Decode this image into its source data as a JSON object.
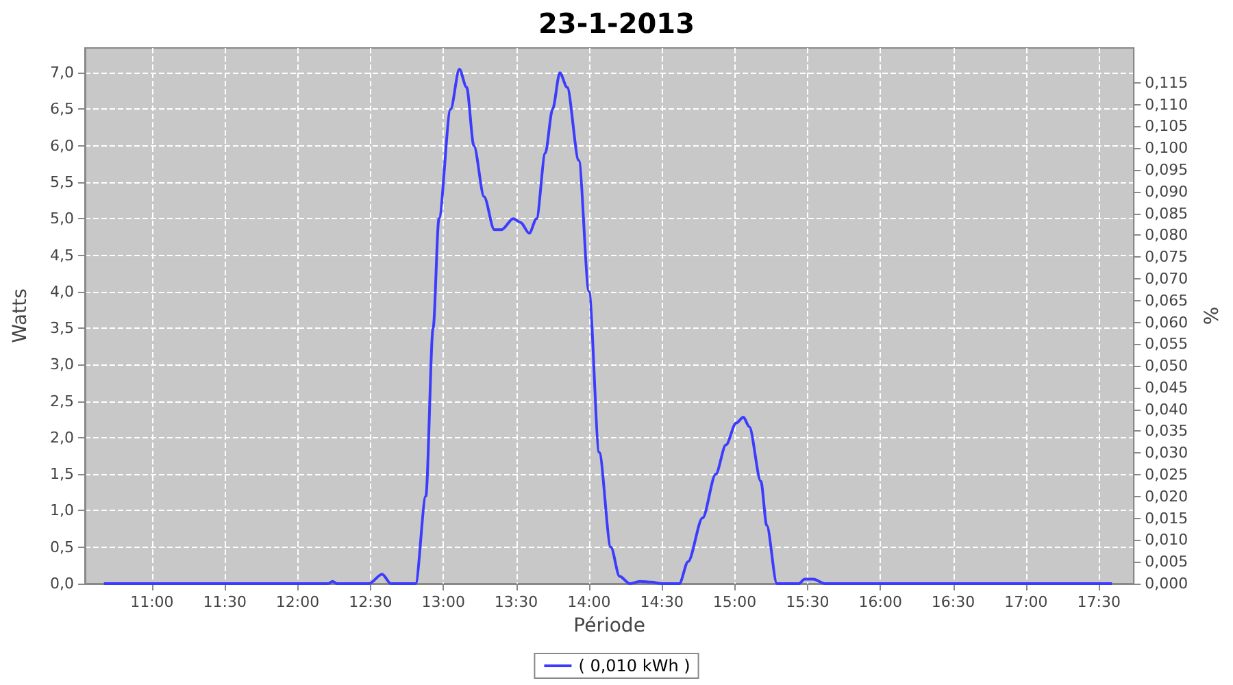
{
  "chart_data": {
    "type": "line",
    "title": "23-1-2013",
    "xlabel": "Période",
    "ylabel": "Watts",
    "y2label": "%",
    "xlim": [
      10.54,
      17.74
    ],
    "xticks": [
      {
        "value": 11,
        "label": "11:00"
      },
      {
        "value": 11.5,
        "label": "11:30"
      },
      {
        "value": 12,
        "label": "12:00"
      },
      {
        "value": 12.5,
        "label": "12:30"
      },
      {
        "value": 13,
        "label": "13:00"
      },
      {
        "value": 13.5,
        "label": "13:30"
      },
      {
        "value": 14,
        "label": "14:00"
      },
      {
        "value": 14.5,
        "label": "14:30"
      },
      {
        "value": 15,
        "label": "15:00"
      },
      {
        "value": 15.5,
        "label": "15:30"
      },
      {
        "value": 16,
        "label": "16:00"
      },
      {
        "value": 16.5,
        "label": "16:30"
      },
      {
        "value": 17,
        "label": "17:00"
      },
      {
        "value": 17.5,
        "label": "17:30"
      }
    ],
    "ylim": [
      0,
      7.34
    ],
    "yticks": [
      {
        "value": 0,
        "label": "0,0"
      },
      {
        "value": 0.5,
        "label": "0,5"
      },
      {
        "value": 1,
        "label": "1,0"
      },
      {
        "value": 1.5,
        "label": "1,5"
      },
      {
        "value": 2,
        "label": "2,0"
      },
      {
        "value": 2.5,
        "label": "2,5"
      },
      {
        "value": 3,
        "label": "3,0"
      },
      {
        "value": 3.5,
        "label": "3,5"
      },
      {
        "value": 4,
        "label": "4,0"
      },
      {
        "value": 4.5,
        "label": "4,5"
      },
      {
        "value": 5,
        "label": "5,0"
      },
      {
        "value": 5.5,
        "label": "5,5"
      },
      {
        "value": 6,
        "label": "6,0"
      },
      {
        "value": 6.5,
        "label": "6,5"
      },
      {
        "value": 7,
        "label": "7,0"
      }
    ],
    "y2lim": [
      0,
      0.123
    ],
    "y2ticks": [
      {
        "value": 0,
        "label": "0,000"
      },
      {
        "value": 0.005,
        "label": "0,005"
      },
      {
        "value": 0.01,
        "label": "0,010"
      },
      {
        "value": 0.015,
        "label": "0,015"
      },
      {
        "value": 0.02,
        "label": "0,020"
      },
      {
        "value": 0.025,
        "label": "0,025"
      },
      {
        "value": 0.03,
        "label": "0,030"
      },
      {
        "value": 0.035,
        "label": "0,035"
      },
      {
        "value": 0.04,
        "label": "0,040"
      },
      {
        "value": 0.045,
        "label": "0,045"
      },
      {
        "value": 0.05,
        "label": "0,050"
      },
      {
        "value": 0.055,
        "label": "0,055"
      },
      {
        "value": 0.06,
        "label": "0,060"
      },
      {
        "value": 0.065,
        "label": "0,065"
      },
      {
        "value": 0.07,
        "label": "0,070"
      },
      {
        "value": 0.075,
        "label": "0,075"
      },
      {
        "value": 0.08,
        "label": "0,080"
      },
      {
        "value": 0.085,
        "label": "0,085"
      },
      {
        "value": 0.09,
        "label": "0,090"
      },
      {
        "value": 0.095,
        "label": "0,095"
      },
      {
        "value": 0.1,
        "label": "0,100"
      },
      {
        "value": 0.105,
        "label": "0,105"
      },
      {
        "value": 0.11,
        "label": "0,110"
      },
      {
        "value": 0.115,
        "label": "0,115"
      }
    ],
    "grid": true,
    "legend": "bottom",
    "marker": "none",
    "line_style": "solid",
    "series": [
      {
        "name": "( 0,010 kWh )",
        "color": "#3c3cff",
        "x": [
          10.67,
          12.21,
          12.24,
          12.27,
          12.49,
          12.58,
          12.64,
          12.81,
          12.88,
          12.93,
          12.97,
          13.05,
          13.11,
          13.16,
          13.21,
          13.28,
          13.35,
          13.4,
          13.48,
          13.53,
          13.59,
          13.64,
          13.7,
          13.75,
          13.8,
          13.85,
          13.93,
          14.0,
          14.07,
          14.15,
          14.21,
          14.28,
          14.35,
          14.43,
          14.5,
          14.62,
          14.68,
          14.78,
          14.87,
          14.94,
          15.01,
          15.06,
          15.1,
          15.18,
          15.22,
          15.29,
          15.44,
          15.48,
          15.54,
          15.62,
          17.59
        ],
        "values": [
          0,
          0,
          0.03,
          0,
          0,
          0.13,
          0,
          0,
          1.2,
          3.5,
          5.0,
          6.5,
          7.05,
          6.8,
          6.0,
          5.3,
          4.85,
          4.85,
          5.0,
          4.95,
          4.8,
          5.0,
          5.9,
          6.5,
          7.0,
          6.8,
          5.8,
          4.0,
          1.8,
          0.5,
          0.1,
          0,
          0.03,
          0.02,
          0,
          0,
          0.3,
          0.9,
          1.5,
          1.9,
          2.2,
          2.28,
          2.15,
          1.4,
          0.8,
          0,
          0,
          0.06,
          0.06,
          0,
          0
        ]
      }
    ]
  }
}
